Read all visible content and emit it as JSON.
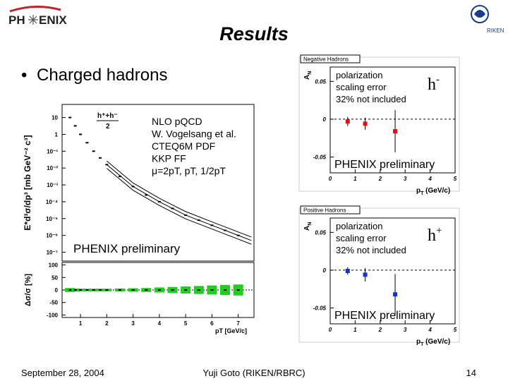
{
  "header": {
    "logo_left": "PH",
    "logo_right": "ENIX",
    "title": "Results",
    "bullet": "Charged hadrons",
    "riken": "RIKEN"
  },
  "footer": {
    "date": "September 28, 2004",
    "author": "Yuji Goto (RIKEN/RBRC)",
    "page": "14"
  },
  "chart_data": [
    {
      "type": "scatter",
      "log_y": true,
      "y_label": "E*d³σ/dp³  [mb GeV⁻² c³]",
      "legend_num": "h⁺+h⁻",
      "legend_den": "2",
      "annotations": [
        "NLO pQCD",
        "W. Vogelsang et al.",
        "CTEQ6M PDF",
        "KKP FF",
        "μ=2pT, pT, 1/2pT"
      ],
      "watermark": "PHENIX preliminary",
      "x": [
        0.6,
        0.8,
        1,
        1.25,
        1.5,
        1.75,
        2,
        2.5,
        3,
        3.5,
        4,
        4.5,
        5,
        5.5,
        6,
        6.5,
        7
      ],
      "values": [
        10,
        3.2,
        1,
        0.32,
        0.1,
        0.04,
        0.016,
        0.0032,
        0.0008,
        0.00025,
        0.0001,
        4e-05,
        1.6e-05,
        8e-06,
        4e-06,
        2e-06,
        1e-06
      ],
      "curve_x": [
        2,
        3,
        4,
        5,
        6,
        7,
        7.5
      ],
      "curves": [
        [
          0.026,
          0.0013,
          0.00016,
          2.6e-05,
          6.4e-06,
          1.6e-06,
          8e-07
        ],
        [
          0.016,
          0.0008,
          0.0001,
          1.6e-05,
          4e-06,
          1e-06,
          5e-07
        ],
        [
          0.0096,
          0.00048,
          6e-05,
          9.6e-06,
          2.4e-06,
          6e-07,
          3e-07
        ]
      ],
      "color": "#000000",
      "xlim": [
        0.3,
        7.6
      ],
      "ylim": [
        3e-08,
        60
      ],
      "yticks": [
        10,
        1,
        {
          "value": 0.1,
          "label": "10⁻¹"
        },
        {
          "value": 0.01,
          "label": "10⁻²"
        },
        {
          "value": 0.001,
          "label": "10⁻³"
        },
        {
          "value": 0.0001,
          "label": "10⁻⁴"
        },
        {
          "value": 1e-05,
          "label": "10⁻⁵"
        },
        {
          "value": 1e-06,
          "label": "10⁻⁶"
        },
        {
          "value": 1e-07,
          "label": "10⁻⁷"
        }
      ]
    },
    {
      "type": "scatter",
      "y_label": "Δσ/σ [%]",
      "x_label": "pT [GeV/c]",
      "x": [
        0.6,
        0.8,
        1,
        1.25,
        1.5,
        1.75,
        2,
        2.5,
        3,
        3.5,
        4,
        4.5,
        5,
        5.5,
        6,
        6.5,
        7
      ],
      "values": [
        0,
        0,
        0,
        0,
        0,
        0,
        0,
        0,
        0,
        0,
        0,
        0,
        0,
        0,
        0,
        0,
        0
      ],
      "band": [
        8,
        6,
        5,
        5,
        5,
        5,
        5,
        6,
        7,
        8,
        10,
        12,
        14,
        16,
        18,
        20,
        22
      ],
      "band_color": "#22cc22",
      "color": "#000000",
      "xlim": [
        0.3,
        7.6
      ],
      "ylim": [
        -110,
        110
      ],
      "xticks": [
        1,
        2,
        3,
        4,
        5,
        6,
        7
      ],
      "yticks": [
        100,
        50,
        0,
        -50,
        -100
      ]
    },
    {
      "type": "scatter",
      "title": "Negative Hadrons",
      "y_label": "A",
      "y_label_sub": "N",
      "x_label": "p",
      "x_label_sub": "T",
      "x_label_unit": " (GeV/c)",
      "annotations": [
        "polarization",
        "scaling error",
        "32% not included"
      ],
      "tag": "h",
      "tag_sup": "-",
      "watermark": "PHENIX preliminary",
      "x": [
        0.7,
        1.4,
        2.6
      ],
      "values": [
        -0.003,
        -0.006,
        -0.016
      ],
      "errors": [
        0.006,
        0.008,
        0.028
      ],
      "color": "#dd1111",
      "xlim": [
        0,
        5
      ],
      "ylim": [
        -0.071,
        0.069
      ],
      "xticks": [
        0,
        1,
        2,
        3,
        4,
        5
      ],
      "yticks": [
        0.05,
        0,
        -0.05
      ]
    },
    {
      "type": "scatter",
      "title": "Positive Hadrons",
      "y_label": "A",
      "y_label_sub": "N",
      "x_label": "p",
      "x_label_sub": "T",
      "x_label_unit": " (GeV/c)",
      "annotations": [
        "polarization",
        "scaling error",
        "32% not included"
      ],
      "tag": "h",
      "tag_sup": "+",
      "watermark": "PHENIX preliminary",
      "x": [
        0.7,
        1.4,
        2.6
      ],
      "values": [
        -0.001,
        -0.006,
        -0.032
      ],
      "errors": [
        0.005,
        0.009,
        0.027
      ],
      "color": "#1133cc",
      "xlim": [
        0,
        5
      ],
      "ylim": [
        -0.071,
        0.069
      ],
      "xticks": [
        0,
        1,
        2,
        3,
        4,
        5
      ],
      "yticks": [
        0.05,
        0,
        -0.05
      ]
    }
  ]
}
